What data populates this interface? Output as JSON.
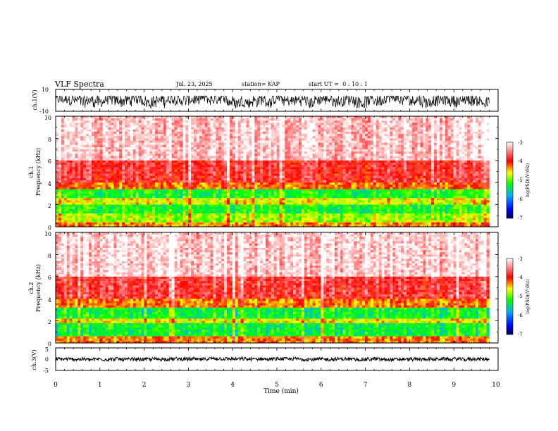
{
  "header": {
    "title": "VLF Spectra",
    "date": "Jul. 23, 2025",
    "station": "station= KAP",
    "start": "start UT =  0 : 10 : 1"
  },
  "colorbar": {
    "label": "log(PSD)(V²/Hz)",
    "ticks": [
      "-3",
      "-4",
      "-5",
      "-6",
      "-7"
    ],
    "colors": [
      "#000060",
      "#0000ff",
      "#00b0ff",
      "#00ff00",
      "#ffff00",
      "#ff0000",
      "#ffffff"
    ]
  },
  "chart_data": [
    {
      "type": "line",
      "panel": "ch1-waveform",
      "ylabel": "ch.1(V)",
      "ylim": [
        -10,
        10
      ],
      "y_tick_labels": [
        "10",
        "-10"
      ],
      "x_range_min": [
        0,
        9.8
      ],
      "series": [
        {
          "name": "ch.1",
          "mean": 0,
          "typical_range": [
            -7,
            4
          ]
        }
      ]
    },
    {
      "type": "heatmap",
      "panel": "ch1-spectrogram",
      "ylabel_line1": "ch.1",
      "ylabel_line2": "Frequency (kHz)",
      "ylim": [
        0,
        10
      ],
      "y_tick_labels": [
        "10",
        "8",
        "6",
        "4",
        "2",
        "0"
      ],
      "band_log_psd": [
        {
          "kHz": [
            0,
            0.5
          ],
          "log_psd": -4.3
        },
        {
          "kHz": [
            0.5,
            1.2
          ],
          "log_psd": -4.8
        },
        {
          "kHz": [
            1.2,
            2.0
          ],
          "log_psd": -5.2
        },
        {
          "kHz": [
            2.0,
            2.5
          ],
          "log_psd": -4.6
        },
        {
          "kHz": [
            2.5,
            3.4
          ],
          "log_psd": -5.2
        },
        {
          "kHz": [
            3.4,
            4.0
          ],
          "log_psd": -4.2
        },
        {
          "kHz": [
            4.0,
            6.0
          ],
          "log_psd": -3.8
        },
        {
          "kHz": [
            6.0,
            10.0
          ],
          "log_psd": -3.2
        }
      ]
    },
    {
      "type": "heatmap",
      "panel": "ch2-spectrogram",
      "ylabel_line1": "ch.2",
      "ylabel_line2": "Frequency (kHz)",
      "ylim": [
        0,
        10
      ],
      "y_tick_labels": [
        "10",
        "8",
        "6",
        "4",
        "2",
        "0"
      ],
      "band_log_psd": [
        {
          "kHz": [
            0,
            0.6
          ],
          "log_psd": -4.3
        },
        {
          "kHz": [
            0.6,
            1.9
          ],
          "log_psd": -5.3
        },
        {
          "kHz": [
            1.9,
            2.3
          ],
          "log_psd": -4.6
        },
        {
          "kHz": [
            2.3,
            3.1
          ],
          "log_psd": -5.3
        },
        {
          "kHz": [
            3.1,
            4.0
          ],
          "log_psd": -4.3
        },
        {
          "kHz": [
            4.0,
            6.0
          ],
          "log_psd": -3.8
        },
        {
          "kHz": [
            6.0,
            10.0
          ],
          "log_psd": -3.2
        }
      ]
    },
    {
      "type": "line",
      "panel": "ch3-waveform",
      "ylabel": "ch.3(V)",
      "ylim": [
        -5,
        5
      ],
      "y_tick_labels": [
        "5",
        "0",
        "-5"
      ],
      "x_range_min": [
        0,
        9.8
      ],
      "series": [
        {
          "name": "ch.3",
          "mean": 0,
          "typical_range": [
            -0.8,
            0.8
          ]
        }
      ]
    }
  ],
  "xaxis": {
    "label": "Time (min)",
    "ticks": [
      "0",
      "1",
      "2",
      "3",
      "4",
      "5",
      "6",
      "7",
      "8",
      "9",
      "10"
    ],
    "range": [
      0,
      10
    ]
  }
}
